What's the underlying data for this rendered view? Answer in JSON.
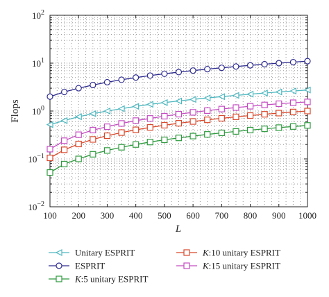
{
  "chart_data": {
    "type": "line",
    "title": "",
    "xlabel": "L",
    "ylabel": "Flops",
    "x_scale": "linear",
    "y_scale": "log",
    "xlim": [
      100,
      1000
    ],
    "ylim": [
      0.01,
      100
    ],
    "x_ticks": [
      100,
      200,
      300,
      400,
      500,
      600,
      700,
      800,
      900,
      1000
    ],
    "x_tick_labels": [
      "100",
      "200",
      "300",
      "400",
      "500",
      "600",
      "700",
      "800",
      "900",
      "1000"
    ],
    "y_ticks": [
      0.01,
      0.1,
      1,
      10,
      100
    ],
    "y_tick_labels": [
      {
        "base": "10",
        "exp": "−2"
      },
      {
        "base": "10",
        "exp": "−1"
      },
      {
        "base": "10",
        "exp": "0"
      },
      {
        "base": "10",
        "exp": "1"
      },
      {
        "base": "10",
        "exp": "2"
      }
    ],
    "grid": true,
    "legend_position": "below plot",
    "x": [
      100,
      150,
      200,
      250,
      300,
      350,
      400,
      450,
      500,
      550,
      600,
      650,
      700,
      750,
      800,
      850,
      900,
      950,
      1000
    ],
    "series": [
      {
        "name": "Unitary ESPRIT",
        "marker": "triangle-left",
        "color": "#4fb8c0",
        "values": [
          0.52,
          0.63,
          0.76,
          0.88,
          1.0,
          1.12,
          1.25,
          1.38,
          1.5,
          1.62,
          1.75,
          1.87,
          2.0,
          2.12,
          2.25,
          2.37,
          2.5,
          2.62,
          2.75
        ]
      },
      {
        "name": "ESPRIT",
        "marker": "circle",
        "color": "#2e2b8f",
        "values": [
          2.0,
          2.5,
          3.0,
          3.5,
          4.0,
          4.5,
          5.0,
          5.5,
          6.0,
          6.5,
          7.0,
          7.5,
          8.0,
          8.5,
          9.0,
          9.5,
          10.0,
          10.5,
          11.0
        ]
      },
      {
        "name": "K:5 unitary ESPRIT",
        "marker": "square",
        "color": "#2e9a3e",
        "values": [
          0.052,
          0.078,
          0.1,
          0.125,
          0.15,
          0.175,
          0.2,
          0.225,
          0.25,
          0.275,
          0.3,
          0.325,
          0.35,
          0.375,
          0.4,
          0.425,
          0.45,
          0.475,
          0.5
        ]
      },
      {
        "name": "K:10 unitary ESPRIT",
        "marker": "square",
        "color": "#d9482b",
        "values": [
          0.105,
          0.155,
          0.205,
          0.255,
          0.305,
          0.355,
          0.405,
          0.455,
          0.505,
          0.555,
          0.605,
          0.655,
          0.705,
          0.755,
          0.805,
          0.855,
          0.905,
          0.955,
          1.0
        ]
      },
      {
        "name": "K:15 unitary ESPRIT",
        "marker": "square",
        "color": "#c44cc2",
        "values": [
          0.16,
          0.24,
          0.32,
          0.4,
          0.47,
          0.55,
          0.63,
          0.7,
          0.78,
          0.86,
          0.94,
          1.02,
          1.1,
          1.18,
          1.26,
          1.34,
          1.42,
          1.49,
          1.55
        ]
      }
    ]
  }
}
